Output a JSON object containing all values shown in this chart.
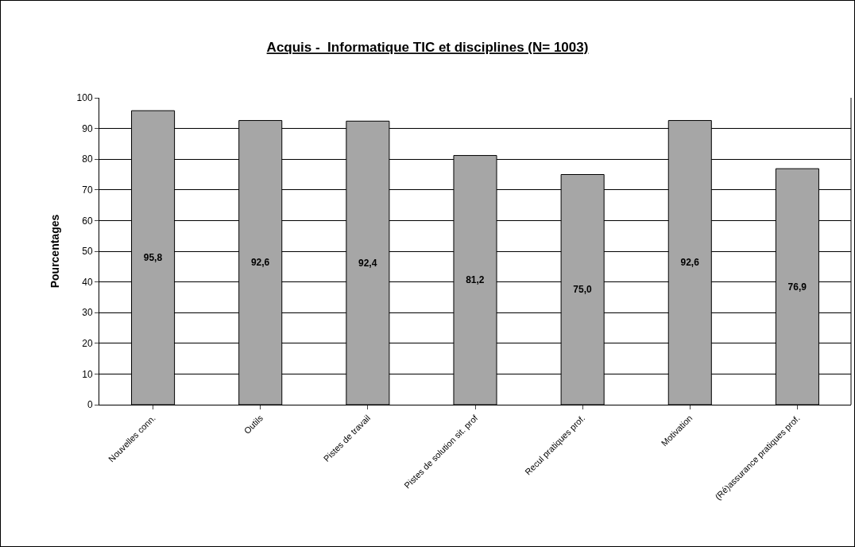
{
  "chart_data": {
    "type": "bar",
    "title": "Acquis -  Informatique TIC et disciplines (N= 1003)",
    "ylabel": "Pourcentages",
    "categories": [
      "Nouvelles conn.",
      "Outils",
      "Pistes de travail",
      "Pistes de solution sit. prof",
      "Recul pratiques prof.",
      "Motivation",
      "(Ré)assurance pratiques prof."
    ],
    "values": [
      95.8,
      92.6,
      92.4,
      81.2,
      75.0,
      92.6,
      76.9
    ],
    "value_labels": [
      "95,8",
      "92,6",
      "92,4",
      "81,2",
      "75,0",
      "92,6",
      "76,9"
    ],
    "color": "#a6a6a6",
    "ylim": [
      0,
      100
    ],
    "yticks": [
      0,
      10,
      20,
      30,
      40,
      50,
      60,
      70,
      80,
      90,
      100
    ],
    "grid": "y",
    "legend": false
  }
}
